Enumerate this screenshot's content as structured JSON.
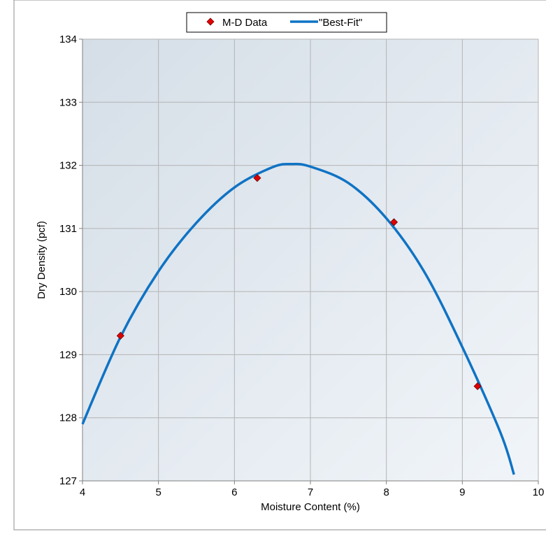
{
  "chart_data": {
    "type": "scatter",
    "xlabel": "Moisture Content (%)",
    "ylabel": "Dry Density (pcf)",
    "xlim": [
      4,
      10
    ],
    "ylim": [
      127,
      134
    ],
    "x_ticks": [
      "4",
      "5",
      "6",
      "7",
      "8",
      "9",
      "10"
    ],
    "y_ticks": [
      "127",
      "128",
      "129",
      "130",
      "131",
      "132",
      "133",
      "134"
    ],
    "grid": true,
    "legend_position": "top-center",
    "series": [
      {
        "name": "M-D Data",
        "kind": "markers",
        "marker": "diamond",
        "color": "#e00000",
        "points": [
          [
            4.5,
            129.3
          ],
          [
            6.3,
            131.8
          ],
          [
            8.1,
            131.1
          ],
          [
            9.2,
            128.5
          ]
        ]
      },
      {
        "name": "\"Best-Fit\"",
        "kind": "line",
        "color": "#0f73c4",
        "points": [
          [
            4.0,
            127.9
          ],
          [
            4.5,
            129.28
          ],
          [
            5.0,
            130.32
          ],
          [
            5.5,
            131.09
          ],
          [
            6.0,
            131.65
          ],
          [
            6.5,
            131.97
          ],
          [
            6.75,
            132.02
          ],
          [
            7.0,
            131.98
          ],
          [
            7.5,
            131.72
          ],
          [
            8.0,
            131.16
          ],
          [
            8.5,
            130.31
          ],
          [
            9.0,
            129.12
          ],
          [
            9.5,
            127.77
          ],
          [
            9.68,
            127.1
          ]
        ]
      }
    ]
  }
}
